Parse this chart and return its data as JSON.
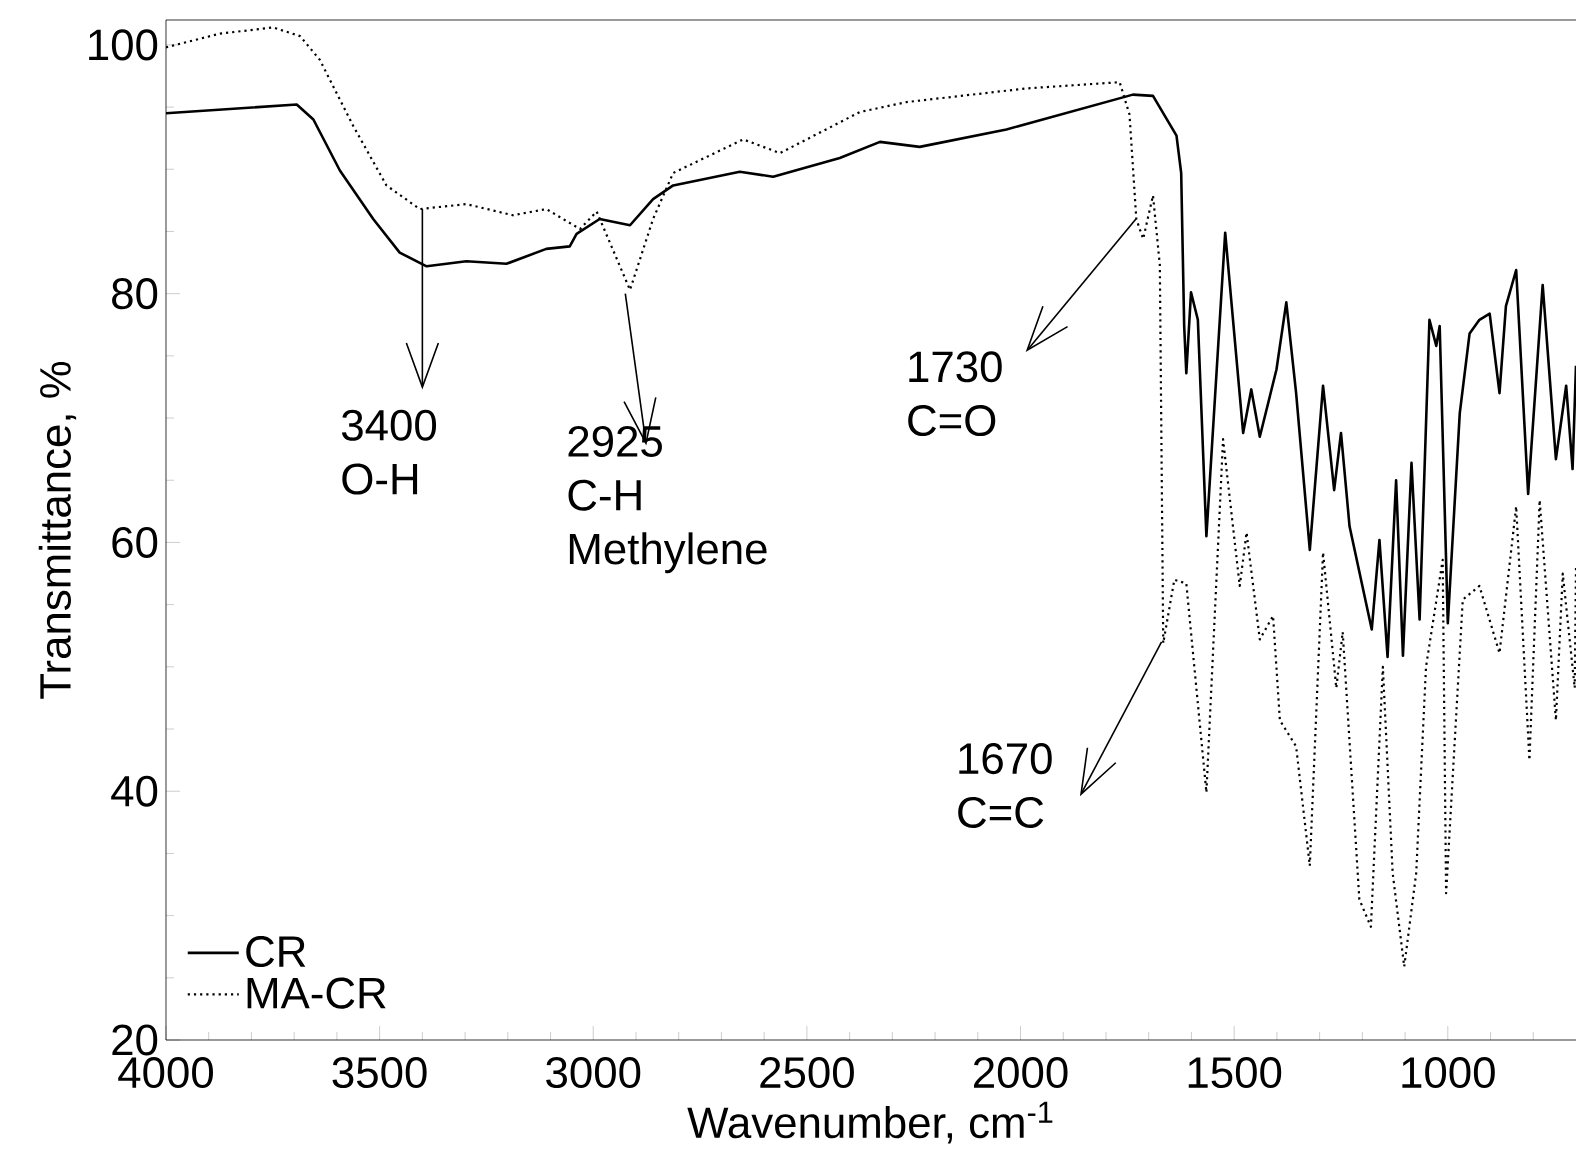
{
  "chart_data": {
    "type": "line",
    "xlabel": "Wavenumber, cm$^{-1}$",
    "ylabel": "Transmittance, %",
    "xlim": [
      4000,
      700
    ],
    "ylim": [
      20,
      102
    ],
    "xticks": [
      4000,
      3500,
      3000,
      2500,
      2000,
      1500,
      1000,
      {
        "value": 3900,
        "label": null
      },
      {
        "value": 3800,
        "label": null
      },
      {
        "value": 3700,
        "label": null
      },
      {
        "value": 3600,
        "label": null
      },
      {
        "value": 3400,
        "label": null
      },
      {
        "value": 3300,
        "label": null
      },
      {
        "value": 3200,
        "label": null
      },
      {
        "value": 3100,
        "label": null
      },
      {
        "value": 2900,
        "label": null
      },
      {
        "value": 2800,
        "label": null
      },
      {
        "value": 2700,
        "label": null
      },
      {
        "value": 2600,
        "label": null
      },
      {
        "value": 2400,
        "label": null
      },
      {
        "value": 2300,
        "label": null
      },
      {
        "value": 2200,
        "label": null
      },
      {
        "value": 2100,
        "label": null
      },
      {
        "value": 1900,
        "label": null
      },
      {
        "value": 1800,
        "label": null
      },
      {
        "value": 1700,
        "label": null
      },
      {
        "value": 1600,
        "label": null
      },
      {
        "value": 1400,
        "label": null
      },
      {
        "value": 1300,
        "label": null
      },
      {
        "value": 1200,
        "label": null
      },
      {
        "value": 1100,
        "label": null
      },
      {
        "value": 900,
        "label": null
      },
      {
        "value": 800,
        "label": null
      }
    ],
    "yticks": [
      20,
      40,
      60,
      80,
      100,
      {
        "value": 25,
        "label": null
      },
      {
        "value": 30,
        "label": null
      },
      {
        "value": 35,
        "label": null
      },
      {
        "value": 45,
        "label": null
      },
      {
        "value": 50,
        "label": null
      },
      {
        "value": 55,
        "label": null
      },
      {
        "value": 65,
        "label": null
      },
      {
        "value": 70,
        "label": null
      },
      {
        "value": 75,
        "label": null
      },
      {
        "value": 85,
        "label": null
      },
      {
        "value": 90,
        "label": null
      },
      {
        "value": 95,
        "label": null
      }
    ],
    "legend": "bottom left",
    "marker": "none",
    "grid": false,
    "series": [
      {
        "name": "CR",
        "color": "#000000",
        "line_style": "solid",
        "x": [
          4000,
          3694,
          3655,
          3593,
          3515,
          3453,
          3390,
          3297,
          3203,
          3110,
          3055,
          3039,
          2985,
          2914,
          2860,
          2813,
          2657,
          2579,
          2423,
          2329,
          2236,
          2033,
          1737,
          1690,
          1635,
          1624,
          1617,
          1612,
          1601,
          1585,
          1565,
          1521,
          1479,
          1460,
          1440,
          1401,
          1378,
          1355,
          1323,
          1292,
          1266,
          1250,
          1230,
          1178,
          1160,
          1141,
          1121,
          1105,
          1085,
          1066,
          1043,
          1027,
          1019,
          1000,
          972,
          949,
          926,
          902,
          879,
          864,
          840,
          812,
          778,
          747,
          723,
          708,
          700
        ],
        "values": [
          94.5,
          95.2,
          94.0,
          89.9,
          86.0,
          83.3,
          82.2,
          82.6,
          82.4,
          83.6,
          83.8,
          84.8,
          86.0,
          85.5,
          87.6,
          88.7,
          89.8,
          89.4,
          90.9,
          92.2,
          91.8,
          93.2,
          96.0,
          95.9,
          92.7,
          89.7,
          77.4,
          73.6,
          80.1,
          77.9,
          60.5,
          84.9,
          68.8,
          72.3,
          68.5,
          73.9,
          79.3,
          72.0,
          59.4,
          72.6,
          64.2,
          68.8,
          61.3,
          53.0,
          60.2,
          50.8,
          65.0,
          50.9,
          66.4,
          53.8,
          77.9,
          75.8,
          77.4,
          53.5,
          70.4,
          76.8,
          77.9,
          78.4,
          72.0,
          79.0,
          81.9,
          63.9,
          80.7,
          66.7,
          72.6,
          65.9,
          74.2
        ]
      },
      {
        "name": "MA-CR",
        "color": "#000000",
        "line_style": "dotted",
        "x": [
          4000,
          3874,
          3749,
          3686,
          3640,
          3562,
          3484,
          3406,
          3297,
          3188,
          3110,
          3031,
          2992,
          2914,
          2860,
          2813,
          2649,
          2563,
          2376,
          2267,
          1986,
          1768,
          1745,
          1729,
          1713,
          1690,
          1674,
          1666,
          1640,
          1612,
          1565,
          1526,
          1487,
          1471,
          1440,
          1409,
          1393,
          1355,
          1323,
          1292,
          1261,
          1246,
          1207,
          1180,
          1152,
          1129,
          1102,
          1074,
          1051,
          1012,
          1004,
          965,
          926,
          879,
          840,
          809,
          785,
          747,
          731,
          703,
          700
        ],
        "values": [
          99.8,
          100.9,
          101.4,
          100.7,
          98.8,
          93.5,
          88.7,
          86.8,
          87.2,
          86.3,
          86.8,
          85.2,
          86.6,
          80.3,
          86.0,
          89.7,
          92.4,
          91.3,
          94.6,
          95.4,
          96.5,
          97.0,
          94.4,
          86.0,
          84.4,
          87.9,
          82.3,
          51.9,
          57.0,
          56.7,
          39.9,
          68.3,
          56.5,
          60.8,
          52.2,
          54.1,
          45.7,
          43.6,
          34.0,
          59.2,
          48.3,
          52.8,
          31.3,
          29.1,
          50.0,
          33.4,
          25.9,
          33.4,
          50.0,
          58.6,
          31.8,
          55.4,
          56.5,
          51.1,
          62.9,
          42.5,
          63.4,
          45.7,
          57.5,
          48.3,
          58.0
        ]
      }
    ],
    "annotations": [
      {
        "text": "3400",
        "x": 3400,
        "y": 86.8
      },
      "O-H",
      {
        "text": "2925",
        "x": 2925,
        "y": 80
      },
      "C-H",
      "Methylene",
      {
        "text": "1730",
        "x": 1730,
        "y": 86
      },
      "C=O",
      {
        "text": "1670",
        "x": 1670,
        "y": 52
      },
      "C=C"
    ]
  }
}
